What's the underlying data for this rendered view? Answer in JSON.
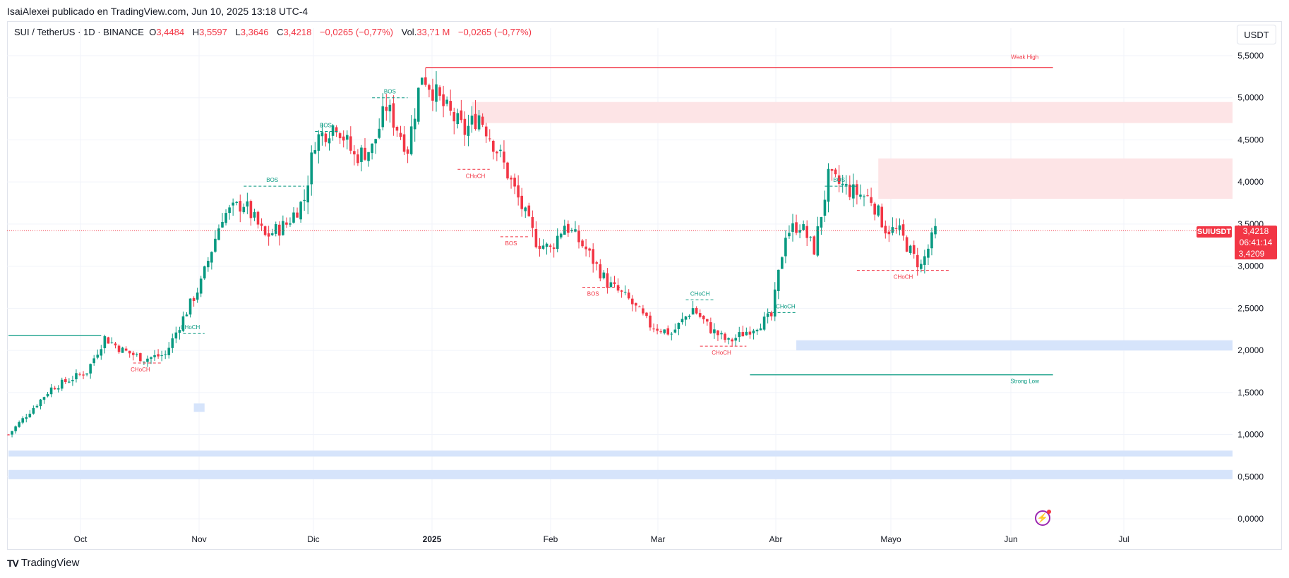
{
  "header": {
    "text": "IsaiAlexei publicado en TradingView.com, Jun 10, 2025 13:18 UTC-4"
  },
  "legend": {
    "symbol": "SUI / TetherUS · 1D · BINANCE",
    "o_label": "O",
    "o": "3,4484",
    "h_label": "H",
    "h": "3,5597",
    "l_label": "L",
    "l": "3,3646",
    "c_label": "C",
    "c": "3,4218",
    "change": "−0,0265 (−0,77%)",
    "vol_label": "Vol.",
    "vol": "33,71 M",
    "vol_change": "−0,0265 (−0,77%)"
  },
  "currency": "USDT",
  "brand": {
    "name": "TradingView",
    "logo_text": "TV"
  },
  "price_tags": {
    "symbol": "SUIUSDT",
    "price": "3,4218",
    "countdown": "06:41:14",
    "prev": "3,4209"
  },
  "icons": {
    "bolt": "lightning-bolt-icon"
  },
  "colors": {
    "up": "#089981",
    "down": "#f23645",
    "supply": "#fde4e6",
    "demand": "#d6e4fb",
    "grid": "#f0f3fa"
  },
  "chart_data": {
    "type": "candlestick",
    "y_ticks": [
      "0,0000",
      "0,5000",
      "1,0000",
      "1,5000",
      "2,0000",
      "2,5000",
      "3,0000",
      "3,5000",
      "4,0000",
      "4,5000",
      "5,0000",
      "5,5000"
    ],
    "x_ticks": [
      "Oct",
      "Nov",
      "Dic",
      "2025",
      "Feb",
      "Mar",
      "Abr",
      "Mayo",
      "Jun",
      "Jul"
    ],
    "ylim": [
      0,
      5.75
    ],
    "last_price": 3.4218,
    "path_anchors": [
      [
        0,
        1.0
      ],
      [
        12,
        1.55
      ],
      [
        22,
        1.75
      ],
      [
        27,
        2.15
      ],
      [
        32,
        2.0
      ],
      [
        38,
        1.9
      ],
      [
        44,
        1.95
      ],
      [
        48,
        2.3
      ],
      [
        54,
        2.8
      ],
      [
        60,
        3.6
      ],
      [
        66,
        3.75
      ],
      [
        72,
        3.35
      ],
      [
        78,
        3.5
      ],
      [
        83,
        3.8
      ],
      [
        86,
        4.5
      ],
      [
        92,
        4.7
      ],
      [
        97,
        4.3
      ],
      [
        102,
        4.4
      ],
      [
        106,
        4.9
      ],
      [
        112,
        4.4
      ],
      [
        116,
        5.3
      ],
      [
        122,
        4.9
      ],
      [
        128,
        4.6
      ],
      [
        132,
        4.8
      ],
      [
        138,
        4.3
      ],
      [
        142,
        3.9
      ],
      [
        148,
        3.3
      ],
      [
        152,
        3.2
      ],
      [
        156,
        3.5
      ],
      [
        162,
        3.2
      ],
      [
        168,
        2.8
      ],
      [
        174,
        2.6
      ],
      [
        180,
        2.3
      ],
      [
        186,
        2.2
      ],
      [
        192,
        2.5
      ],
      [
        197,
        2.25
      ],
      [
        202,
        2.1
      ],
      [
        208,
        2.25
      ],
      [
        214,
        2.4
      ],
      [
        218,
        3.4
      ],
      [
        222,
        3.5
      ],
      [
        226,
        3.2
      ],
      [
        230,
        4.05
      ],
      [
        236,
        3.9
      ],
      [
        242,
        3.8
      ],
      [
        246,
        3.45
      ],
      [
        250,
        3.4
      ],
      [
        254,
        3.1
      ],
      [
        256,
        3.0
      ],
      [
        260,
        3.42
      ]
    ],
    "zones": [
      {
        "type": "supply",
        "y0": 4.7,
        "y1": 4.95,
        "x0": 130
      },
      {
        "type": "supply",
        "y0": 3.8,
        "y1": 4.28,
        "x0": 244
      },
      {
        "type": "demand",
        "y0": 2.0,
        "y1": 2.12,
        "x0": 221
      },
      {
        "type": "demand",
        "y0": 0.74,
        "y1": 0.81,
        "x0": 0
      },
      {
        "type": "demand",
        "y0": 0.47,
        "y1": 0.58,
        "x0": 0
      },
      {
        "type": "demand",
        "y0": 1.27,
        "y1": 1.37,
        "x0": 52,
        "x1": 55
      }
    ],
    "annotations": [
      {
        "text": "CHoCH",
        "color": "up",
        "x": 51,
        "y": 2.2,
        "x0": 49,
        "x1": 55
      },
      {
        "text": "CHoCH",
        "color": "down",
        "x": 37,
        "y": 1.85,
        "x0": 35,
        "x1": 43
      },
      {
        "text": "BOS",
        "color": "up",
        "x": 74,
        "y": 3.95,
        "x0": 66,
        "x1": 83
      },
      {
        "text": "BOS",
        "color": "up",
        "x": 89,
        "y": 4.6,
        "x0": 86,
        "x1": 93
      },
      {
        "text": "BOS",
        "color": "up",
        "x": 107,
        "y": 5.0,
        "x0": 102,
        "x1": 112
      },
      {
        "text": "CHoCH",
        "color": "down",
        "x": 131,
        "y": 4.15,
        "x0": 126,
        "x1": 135
      },
      {
        "text": "BOS",
        "color": "down",
        "x": 141,
        "y": 3.35,
        "x0": 138,
        "x1": 146
      },
      {
        "text": "BOS",
        "color": "down",
        "x": 164,
        "y": 2.75,
        "x0": 161,
        "x1": 172
      },
      {
        "text": "CHoCH",
        "color": "up",
        "x": 194,
        "y": 2.6,
        "x0": 190,
        "x1": 198
      },
      {
        "text": "CHoCH",
        "color": "down",
        "x": 200,
        "y": 2.05,
        "x0": 194,
        "x1": 207
      },
      {
        "text": "CHoCH",
        "color": "up",
        "x": 218,
        "y": 2.45,
        "x0": 213,
        "x1": 221
      },
      {
        "text": "BOS",
        "color": "up",
        "x": 233,
        "y": 3.95,
        "x0": 229,
        "x1": 238
      },
      {
        "text": "CHoCH",
        "color": "down",
        "x": 251,
        "y": 2.95,
        "x0": 238,
        "x1": 264
      }
    ],
    "levels": [
      {
        "text": "Weak High",
        "color": "down",
        "y": 5.36,
        "x0": 117,
        "x1": 293
      },
      {
        "text": "Strong Low",
        "color": "up",
        "y": 1.71,
        "x0": 208,
        "x1": 293
      },
      {
        "text": "",
        "color": "up",
        "y": 2.18,
        "x0": 0,
        "x1": 26
      }
    ]
  }
}
